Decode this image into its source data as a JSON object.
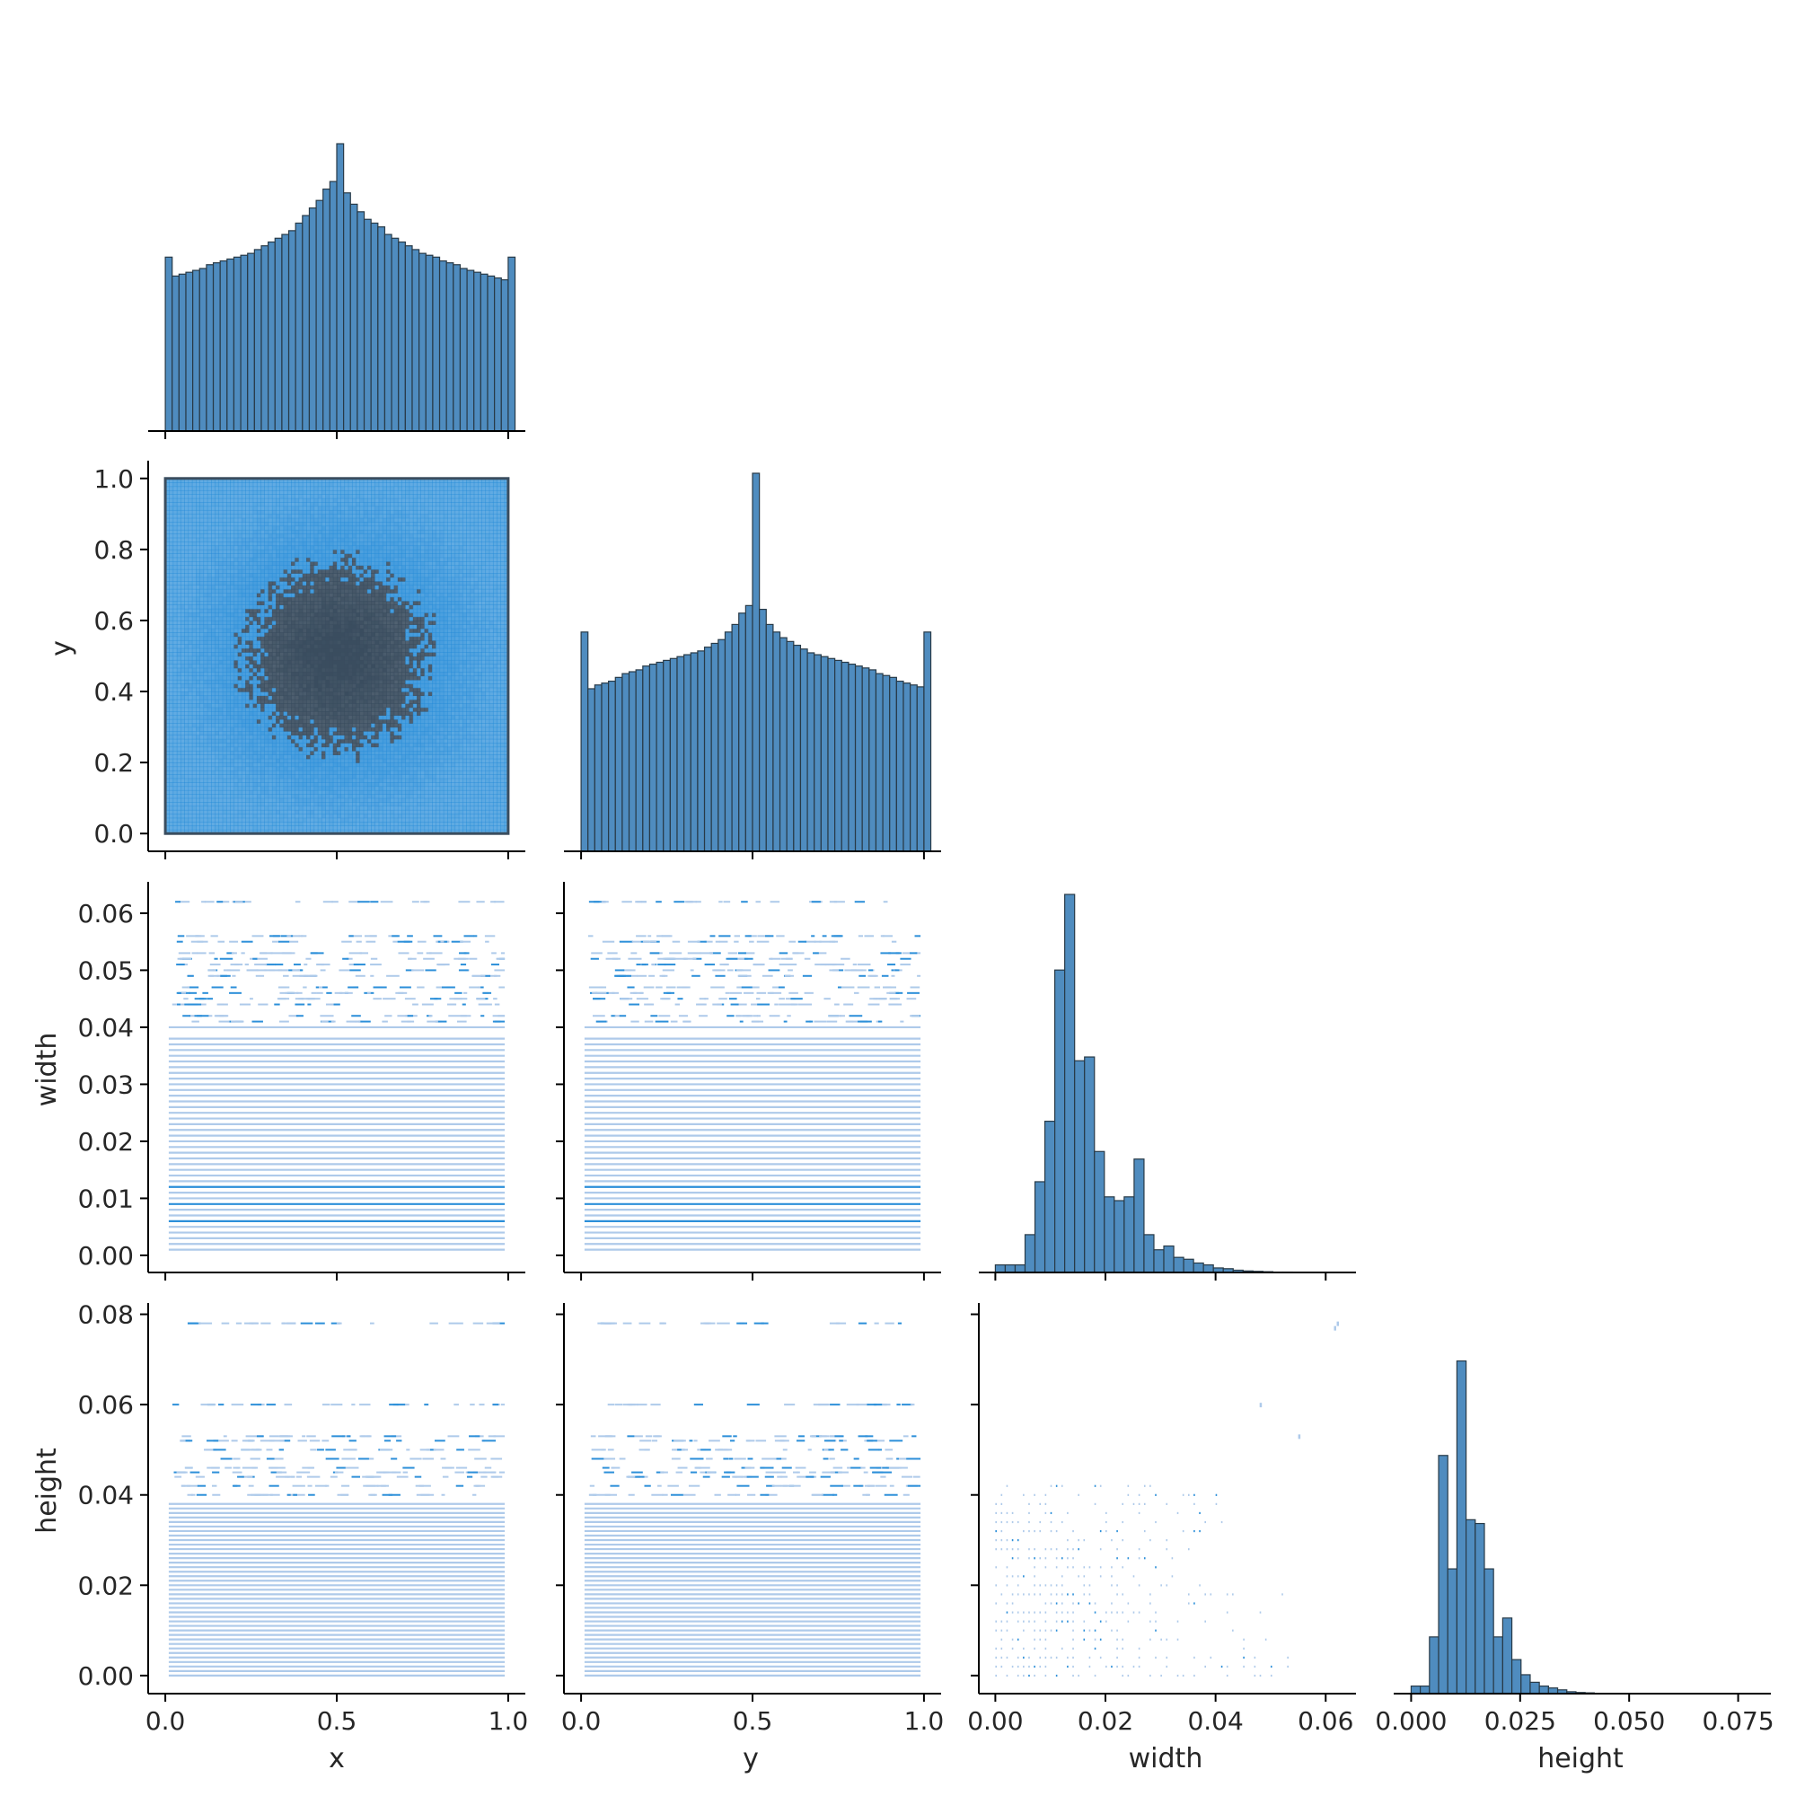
{
  "colors": {
    "hist_fill": "#4f8cbf",
    "hist_edge": "#283a47",
    "density_dark": "#3a4d5f",
    "density_mid": "#2c8fd9",
    "density_light": "#aecaea",
    "axis": "#000000",
    "text": "#262626"
  },
  "chart_data": {
    "type": "pairplot",
    "variables": [
      "x",
      "y",
      "width",
      "height"
    ],
    "layout": "corner (lower triangle); diagonal = histograms, off-diagonal = 2D histograms",
    "axis_labels": {
      "x_bottom": [
        "x",
        "y",
        "width",
        "height"
      ],
      "y_left": [
        "y",
        "width",
        "height"
      ]
    },
    "ranges": {
      "x": [
        -0.05,
        1.05
      ],
      "y": [
        -0.05,
        1.05
      ],
      "width": [
        -0.003,
        0.0655
      ],
      "height": [
        -0.004,
        0.0825
      ]
    },
    "ticks": {
      "x": {
        "values": [
          0.0,
          0.5,
          1.0
        ],
        "labels": [
          "0.0",
          "0.5",
          "1.0"
        ]
      },
      "y": {
        "values": [
          0.0,
          0.5,
          1.0
        ],
        "labels": [
          "0.0",
          "0.5",
          "1.0"
        ]
      },
      "width": {
        "values": [
          0.0,
          0.02,
          0.04,
          0.06
        ],
        "labels": [
          "0.00",
          "0.02",
          "0.04",
          "0.06"
        ]
      },
      "height": {
        "values": [
          0.0,
          0.025,
          0.05,
          0.075
        ],
        "labels": [
          "0.000",
          "0.025",
          "0.050",
          "0.075"
        ]
      }
    },
    "row_ticks": {
      "y": {
        "values": [
          0.0,
          0.2,
          0.4,
          0.6,
          0.8,
          1.0
        ],
        "labels": [
          "0.0",
          "0.2",
          "0.4",
          "0.6",
          "0.8",
          "1.0"
        ]
      },
      "width": {
        "values": [
          0.0,
          0.01,
          0.02,
          0.03,
          0.04,
          0.05,
          0.06
        ],
        "labels": [
          "0.00",
          "0.01",
          "0.02",
          "0.03",
          "0.04",
          "0.05",
          "0.06"
        ]
      },
      "height": {
        "values": [
          0.0,
          0.02,
          0.04,
          0.06,
          0.08
        ],
        "labels": [
          "0.00",
          "0.02",
          "0.04",
          "0.06",
          "0.08"
        ]
      }
    },
    "diagonal_histograms": {
      "x": {
        "bin_start": 0.0,
        "bin_width": 0.02,
        "counts": [
          0.46,
          0.41,
          0.415,
          0.42,
          0.425,
          0.43,
          0.44,
          0.445,
          0.45,
          0.455,
          0.46,
          0.465,
          0.47,
          0.48,
          0.49,
          0.5,
          0.51,
          0.52,
          0.53,
          0.55,
          0.57,
          0.59,
          0.61,
          0.64,
          0.66,
          0.76,
          0.63,
          0.6,
          0.58,
          0.56,
          0.55,
          0.54,
          0.52,
          0.51,
          0.5,
          0.49,
          0.48,
          0.47,
          0.465,
          0.46,
          0.45,
          0.445,
          0.44,
          0.43,
          0.425,
          0.42,
          0.415,
          0.41,
          0.405,
          0.4,
          0.46
        ]
      },
      "y": {
        "bin_start": 0.0,
        "bin_width": 0.02,
        "counts": [
          0.58,
          0.43,
          0.44,
          0.445,
          0.45,
          0.46,
          0.47,
          0.475,
          0.48,
          0.49,
          0.495,
          0.5,
          0.505,
          0.51,
          0.515,
          0.52,
          0.525,
          0.53,
          0.54,
          0.55,
          0.56,
          0.58,
          0.6,
          0.63,
          0.65,
          1.0,
          0.64,
          0.6,
          0.58,
          0.565,
          0.555,
          0.545,
          0.535,
          0.525,
          0.52,
          0.515,
          0.51,
          0.505,
          0.5,
          0.495,
          0.49,
          0.485,
          0.48,
          0.47,
          0.465,
          0.46,
          0.45,
          0.445,
          0.44,
          0.435,
          0.58
        ]
      },
      "width": {
        "bin_start": 0.0,
        "bin_width": 0.0018,
        "counts": [
          0.02,
          0.02,
          0.02,
          0.1,
          0.24,
          0.4,
          0.8,
          1.0,
          0.56,
          0.57,
          0.32,
          0.2,
          0.19,
          0.2,
          0.3,
          0.1,
          0.06,
          0.07,
          0.04,
          0.035,
          0.025,
          0.02,
          0.012,
          0.01,
          0.006,
          0.004,
          0.003,
          0.002,
          0.001,
          0.001,
          0.0,
          0.0,
          0.0,
          0.0,
          0.0
        ]
      },
      "height": {
        "bin_start": 0.0,
        "bin_width": 0.0021,
        "counts": [
          0.02,
          0.02,
          0.15,
          0.63,
          0.33,
          0.88,
          0.46,
          0.45,
          0.33,
          0.15,
          0.2,
          0.09,
          0.05,
          0.03,
          0.02,
          0.015,
          0.01,
          0.005,
          0.003,
          0.002,
          0.0,
          0.0,
          0.0,
          0.0,
          0.0,
          0.0,
          0.0,
          0.0,
          0.0,
          0.0,
          0.0,
          0.0,
          0.0,
          0.0,
          0.0,
          0.0,
          0.0,
          0.0
        ]
      }
    },
    "joint_histograms": {
      "y_vs_x": {
        "description": "dense square over [0,1]x[0,1], darker toward center (0.5,0.5)",
        "x_range": [
          0.0,
          1.0
        ],
        "y_range": [
          0.0,
          1.0
        ]
      },
      "width_vs_x": {
        "levels": [
          0.001,
          0.002,
          0.003,
          0.004,
          0.005,
          0.006,
          0.007,
          0.008,
          0.009,
          0.01,
          0.011,
          0.012,
          0.013,
          0.014,
          0.015,
          0.016,
          0.017,
          0.018,
          0.019,
          0.02,
          0.021,
          0.022,
          0.023,
          0.024,
          0.025,
          0.026,
          0.027,
          0.028,
          0.029,
          0.03,
          0.031,
          0.032,
          0.033,
          0.034,
          0.035,
          0.036,
          0.037,
          0.038,
          0.04,
          0.041,
          0.042,
          0.044,
          0.045,
          0.046,
          0.047,
          0.049,
          0.05,
          0.051,
          0.052,
          0.053,
          0.055,
          0.056,
          0.062
        ]
      },
      "height_vs_x": {
        "levels": [
          0.0,
          0.001,
          0.002,
          0.003,
          0.004,
          0.005,
          0.006,
          0.007,
          0.008,
          0.009,
          0.01,
          0.011,
          0.012,
          0.013,
          0.014,
          0.015,
          0.016,
          0.017,
          0.018,
          0.019,
          0.02,
          0.021,
          0.022,
          0.023,
          0.024,
          0.025,
          0.026,
          0.027,
          0.028,
          0.029,
          0.03,
          0.031,
          0.032,
          0.033,
          0.034,
          0.035,
          0.036,
          0.037,
          0.038,
          0.04,
          0.042,
          0.044,
          0.045,
          0.046,
          0.048,
          0.05,
          0.052,
          0.053,
          0.06,
          0.078
        ]
      },
      "height_vs_width": {
        "description": "sparse grid of small cells; width 0.0-0.056, height 0.0-0.043 with outliers near 0.078"
      }
    }
  }
}
